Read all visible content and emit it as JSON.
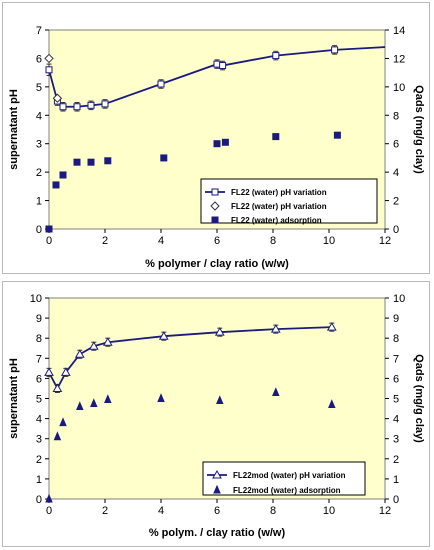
{
  "chart_data": [
    {
      "type": "scatter",
      "title": "",
      "xlabel": "% polymer / clay ratio (w/w)",
      "ylabel": "supernatant pH",
      "y2label": "Qads (mg/g clay)",
      "xlim": [
        0,
        12
      ],
      "ylim": [
        0,
        7
      ],
      "y2lim": [
        0,
        14
      ],
      "xticks": [
        "0",
        "2",
        "4",
        "6",
        "8",
        "10",
        "12"
      ],
      "yticks": [
        "0",
        "1",
        "2",
        "3",
        "4",
        "5",
        "6",
        "7"
      ],
      "y2ticks": [
        "0",
        "2",
        "4",
        "6",
        "8",
        "10",
        "12",
        "14"
      ],
      "grid": false,
      "legend_placement": "bottom-right",
      "plot_background": "#ffffcc",
      "line_color": "#1a1a80",
      "series": [
        {
          "name": "FL22 (water) pH variation",
          "marker": "open-square-line",
          "axis": "left",
          "x": [
            0,
            0.3,
            0.5,
            1.0,
            1.5,
            2.0,
            4.0,
            6.0,
            6.2,
            8.1,
            10.2,
            12.0
          ],
          "y": [
            5.6,
            4.5,
            4.3,
            4.3,
            4.35,
            4.4,
            5.1,
            5.8,
            5.75,
            6.1,
            6.3,
            6.4
          ],
          "error": [
            0.2,
            0.15,
            0.15,
            0.15,
            0.15,
            0.15,
            0.15,
            0.15,
            0.15,
            0.15,
            0.15,
            0
          ]
        },
        {
          "name": "FL22 (water) pH variation",
          "marker": "open-diamond",
          "axis": "left",
          "x": [
            0,
            0.3
          ],
          "y": [
            6.0,
            4.6
          ]
        },
        {
          "name": "FL22 (water) adsorption",
          "marker": "filled-square",
          "axis": "right",
          "x": [
            0,
            0.25,
            0.5,
            1.0,
            1.5,
            2.1,
            4.1,
            6.0,
            6.3,
            8.1,
            10.3
          ],
          "y": [
            0,
            3.1,
            3.8,
            4.7,
            4.7,
            4.8,
            5.0,
            6.0,
            6.1,
            6.5,
            6.6
          ]
        }
      ]
    },
    {
      "type": "scatter",
      "title": "",
      "xlabel": "% polym. / clay ratio (w/w)",
      "ylabel": "supernatant pH",
      "y2label": "Qads (mg/g clay)",
      "xlim": [
        0,
        12
      ],
      "ylim": [
        0,
        10
      ],
      "y2lim": [
        0,
        10
      ],
      "xticks": [
        "0",
        "2",
        "4",
        "6",
        "8",
        "10",
        "12"
      ],
      "yticks": [
        "0",
        "1",
        "2",
        "3",
        "4",
        "5",
        "6",
        "7",
        "8",
        "9",
        "10"
      ],
      "y2ticks": [
        "0",
        "1",
        "2",
        "3",
        "4",
        "5",
        "6",
        "7",
        "8",
        "9",
        "10"
      ],
      "grid": false,
      "legend_placement": "bottom-right",
      "plot_background": "#ffffcc",
      "line_color": "#1a1a80",
      "series": [
        {
          "name": "FL22mod (water) pH variation",
          "marker": "open-triangle-line",
          "axis": "left",
          "x": [
            0,
            0.3,
            0.6,
            1.1,
            1.6,
            2.1,
            4.1,
            6.1,
            8.1,
            10.1
          ],
          "y": [
            6.3,
            5.5,
            6.3,
            7.2,
            7.6,
            7.8,
            8.1,
            8.3,
            8.45,
            8.55
          ],
          "error": [
            0.2,
            0.2,
            0.2,
            0.2,
            0.2,
            0.2,
            0.2,
            0.2,
            0.2,
            0.2
          ]
        },
        {
          "name": "FL22mod (water) adsorption",
          "marker": "filled-triangle",
          "axis": "right",
          "x": [
            0,
            0.3,
            0.5,
            1.1,
            1.6,
            2.1,
            4.0,
            6.1,
            8.1,
            10.1
          ],
          "y": [
            0,
            3.1,
            3.8,
            4.6,
            4.75,
            4.95,
            5.0,
            4.9,
            5.3,
            4.7
          ]
        }
      ]
    }
  ]
}
